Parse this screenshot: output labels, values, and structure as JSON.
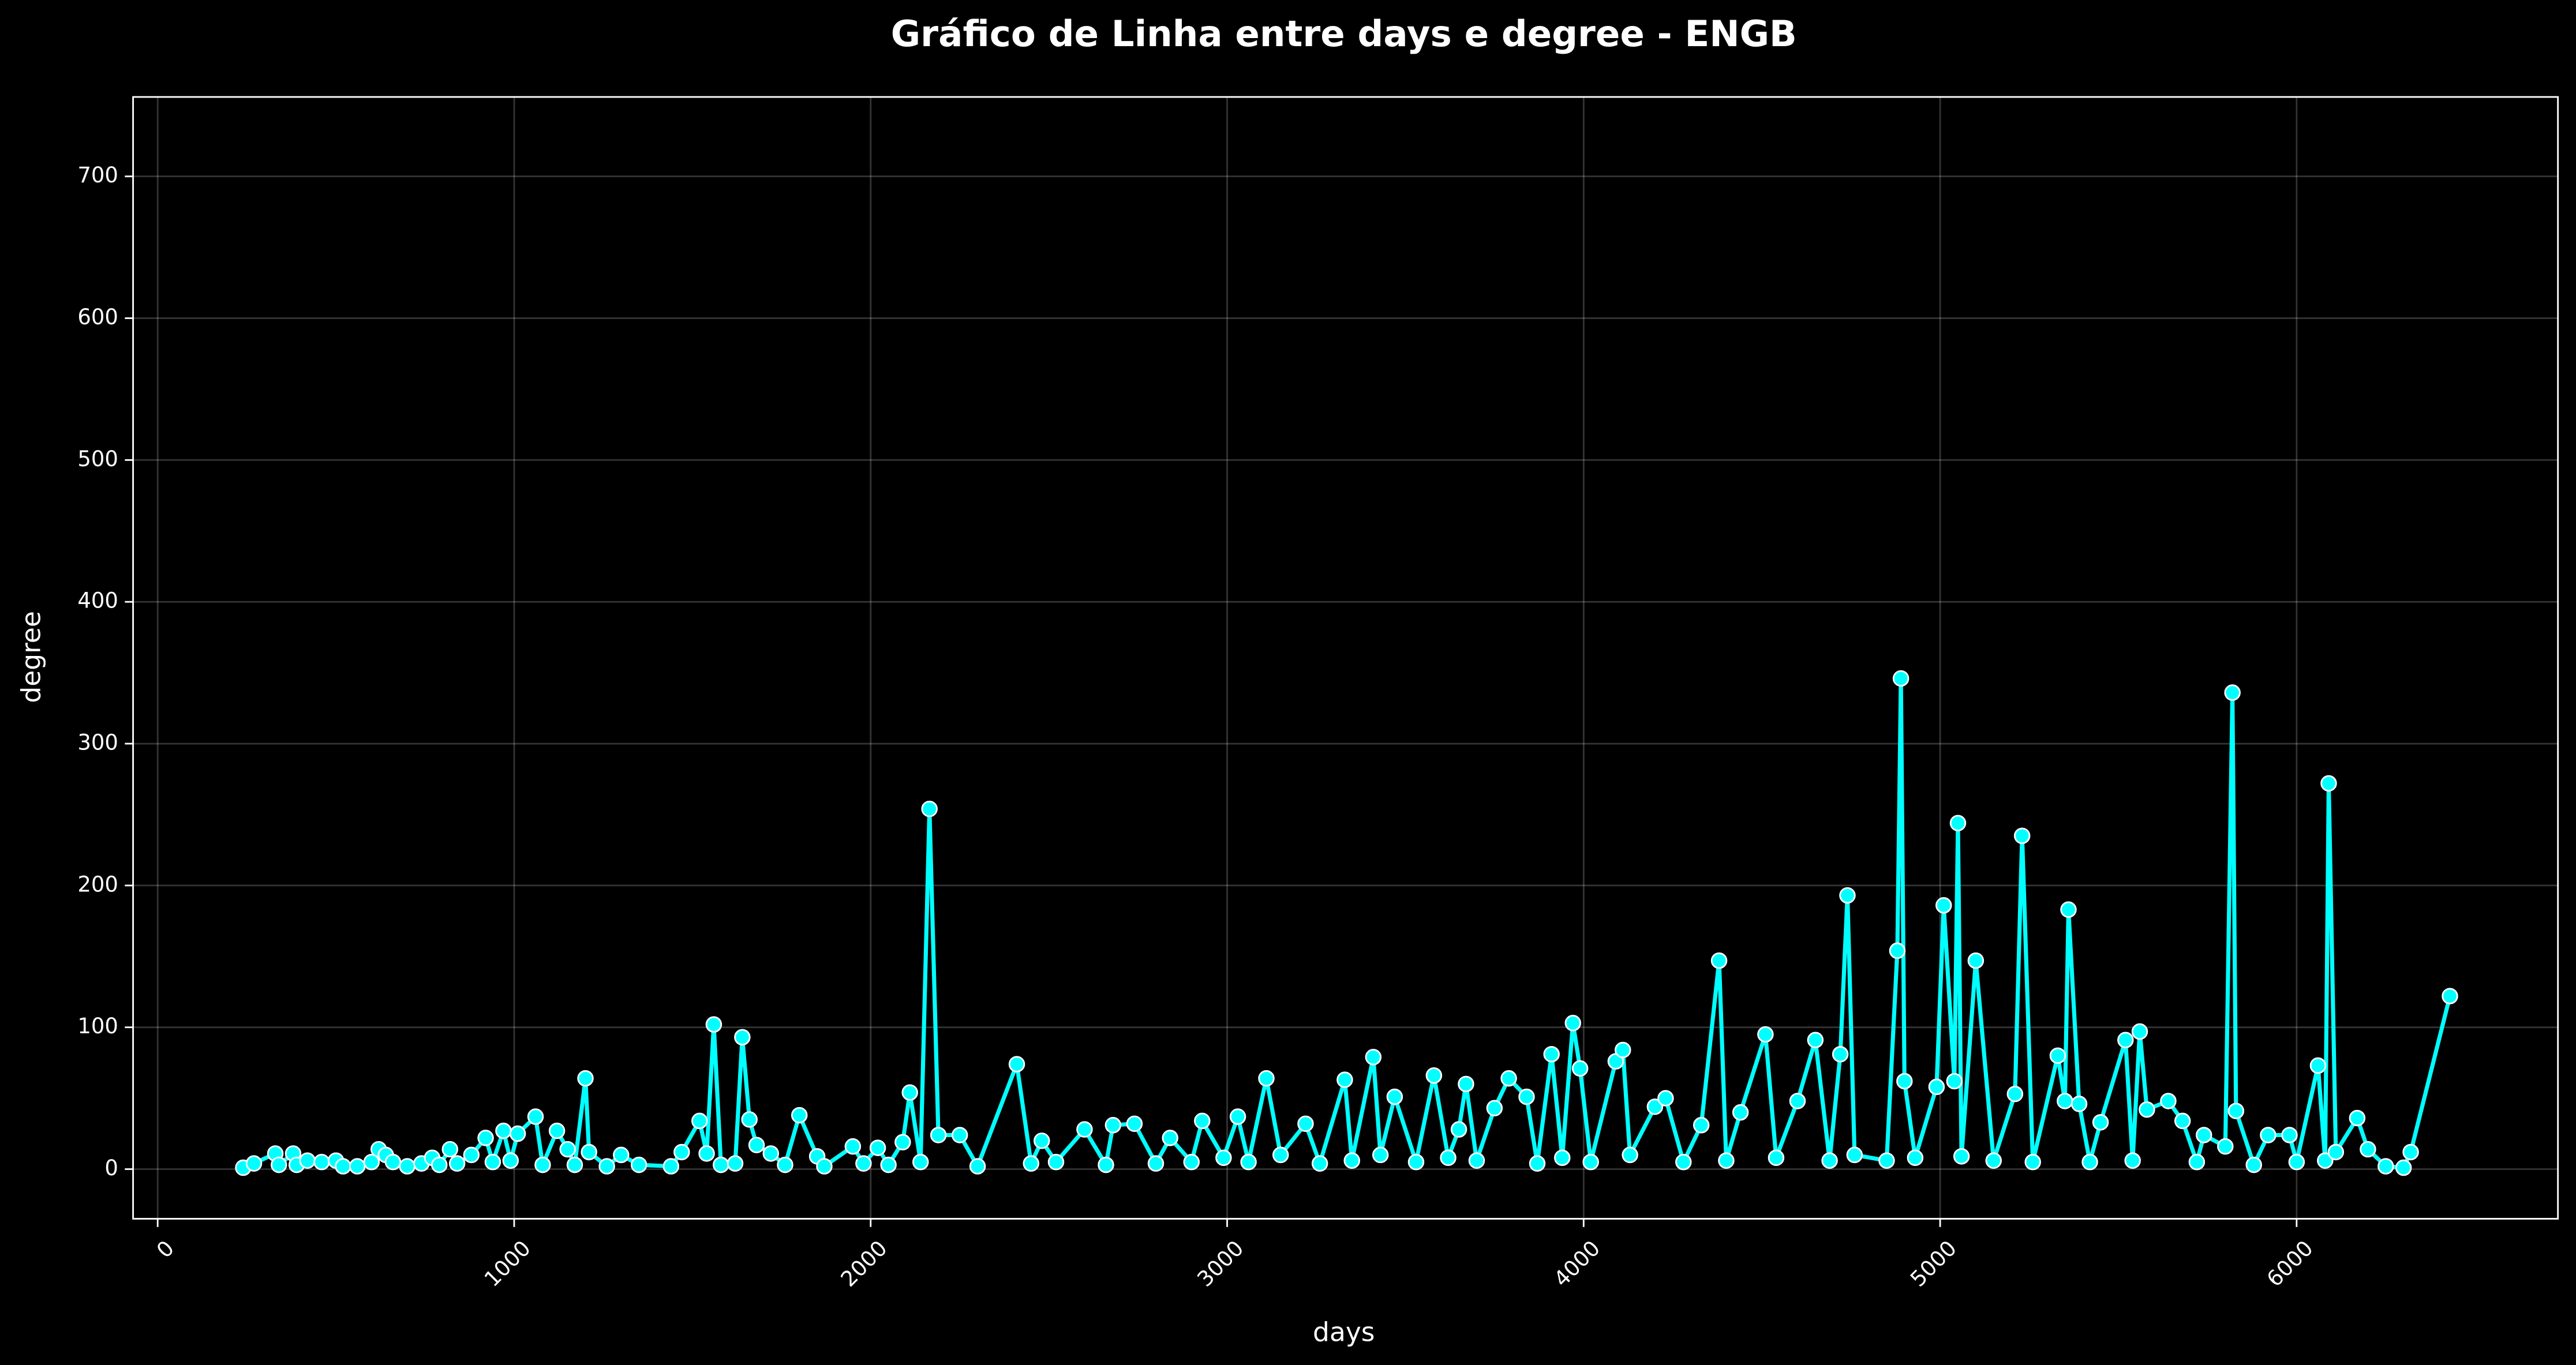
{
  "chart_data": {
    "type": "line",
    "title": "Gráfico de Linha entre days e degree - ENGB",
    "x_label": "days",
    "y_label": "degree",
    "x": [
      240,
      270,
      330,
      340,
      380,
      390,
      420,
      460,
      500,
      520,
      560,
      600,
      620,
      640,
      660,
      700,
      740,
      770,
      790,
      820,
      840,
      880,
      920,
      940,
      970,
      990,
      1010,
      1060,
      1080,
      1120,
      1150,
      1170,
      1200,
      1210,
      1260,
      1300,
      1350,
      1440,
      1470,
      1520,
      1540,
      1560,
      1580,
      1620,
      1640,
      1660,
      1680,
      1720,
      1760,
      1800,
      1850,
      1870,
      1950,
      1980,
      2020,
      2050,
      2090,
      2110,
      2140,
      2165,
      2190,
      2250,
      2300,
      2410,
      2450,
      2480,
      2520,
      2600,
      2660,
      2680,
      2740,
      2800,
      2840,
      2900,
      2930,
      2990,
      3030,
      3060,
      3110,
      3150,
      3220,
      3260,
      3330,
      3350,
      3410,
      3430,
      3470,
      3530,
      3580,
      3620,
      3650,
      3670,
      3700,
      3750,
      3790,
      3840,
      3870,
      3910,
      3940,
      3970,
      3990,
      4020,
      4090,
      4110,
      4130,
      4200,
      4230,
      4280,
      4330,
      4380,
      4400,
      4440,
      4510,
      4540,
      4600,
      4650,
      4690,
      4720,
      4740,
      4760,
      4850,
      4880,
      4890,
      4900,
      4930,
      4990,
      5010,
      5040,
      5050,
      5060,
      5100,
      5150,
      5210,
      5230,
      5260,
      5330,
      5350,
      5360,
      5390,
      5420,
      5450,
      5520,
      5540,
      5560,
      5580,
      5640,
      5680,
      5720,
      5740,
      5800,
      5820,
      5830,
      5880,
      5920,
      5980,
      6000,
      6060,
      6080,
      6090,
      6110,
      6170,
      6200,
      6250,
      6300,
      6320,
      6430
    ],
    "series": [
      {
        "name": "degree",
        "color": "#00ffff",
        "values": [
          1,
          4,
          11,
          3,
          11,
          3,
          6,
          5,
          6,
          2,
          2,
          5,
          14,
          10,
          5,
          2,
          4,
          8,
          3,
          14,
          4,
          10,
          22,
          5,
          27,
          6,
          25,
          37,
          3,
          27,
          14,
          3,
          64,
          12,
          2,
          10,
          3,
          2,
          12,
          34,
          11,
          102,
          3,
          4,
          93,
          35,
          17,
          11,
          3,
          38,
          9,
          2,
          16,
          4,
          15,
          3,
          19,
          54,
          5,
          254,
          24,
          24,
          2,
          74,
          4,
          20,
          5,
          28,
          3,
          31,
          32,
          4,
          22,
          5,
          34,
          8,
          37,
          5,
          64,
          10,
          32,
          4,
          63,
          6,
          79,
          10,
          51,
          5,
          66,
          8,
          28,
          60,
          6,
          43,
          64,
          51,
          4,
          81,
          8,
          103,
          71,
          5,
          76,
          84,
          10,
          44,
          50,
          5,
          31,
          147,
          6,
          40,
          95,
          8,
          48,
          91,
          6,
          81,
          193,
          10,
          6,
          154,
          346,
          62,
          8,
          58,
          186,
          62,
          244,
          9,
          147,
          6,
          53,
          235,
          5,
          80,
          48,
          183,
          46,
          5,
          33,
          91,
          6,
          97,
          42,
          48,
          34,
          5,
          24,
          16,
          336,
          41,
          3,
          24,
          24,
          5,
          73,
          6,
          272,
          12,
          36,
          14,
          2,
          1,
          12,
          122
        ]
      }
    ],
    "xlim": [
      -69,
      6733
    ],
    "ylim": [
      -35,
      756
    ],
    "xticks": [
      0,
      1000,
      2000,
      3000,
      4000,
      5000,
      6000
    ],
    "yticks": [
      0,
      100,
      200,
      300,
      400,
      500,
      600,
      700
    ],
    "grid": true,
    "background": "#000000",
    "marker_edge_color": "#ffffff"
  }
}
